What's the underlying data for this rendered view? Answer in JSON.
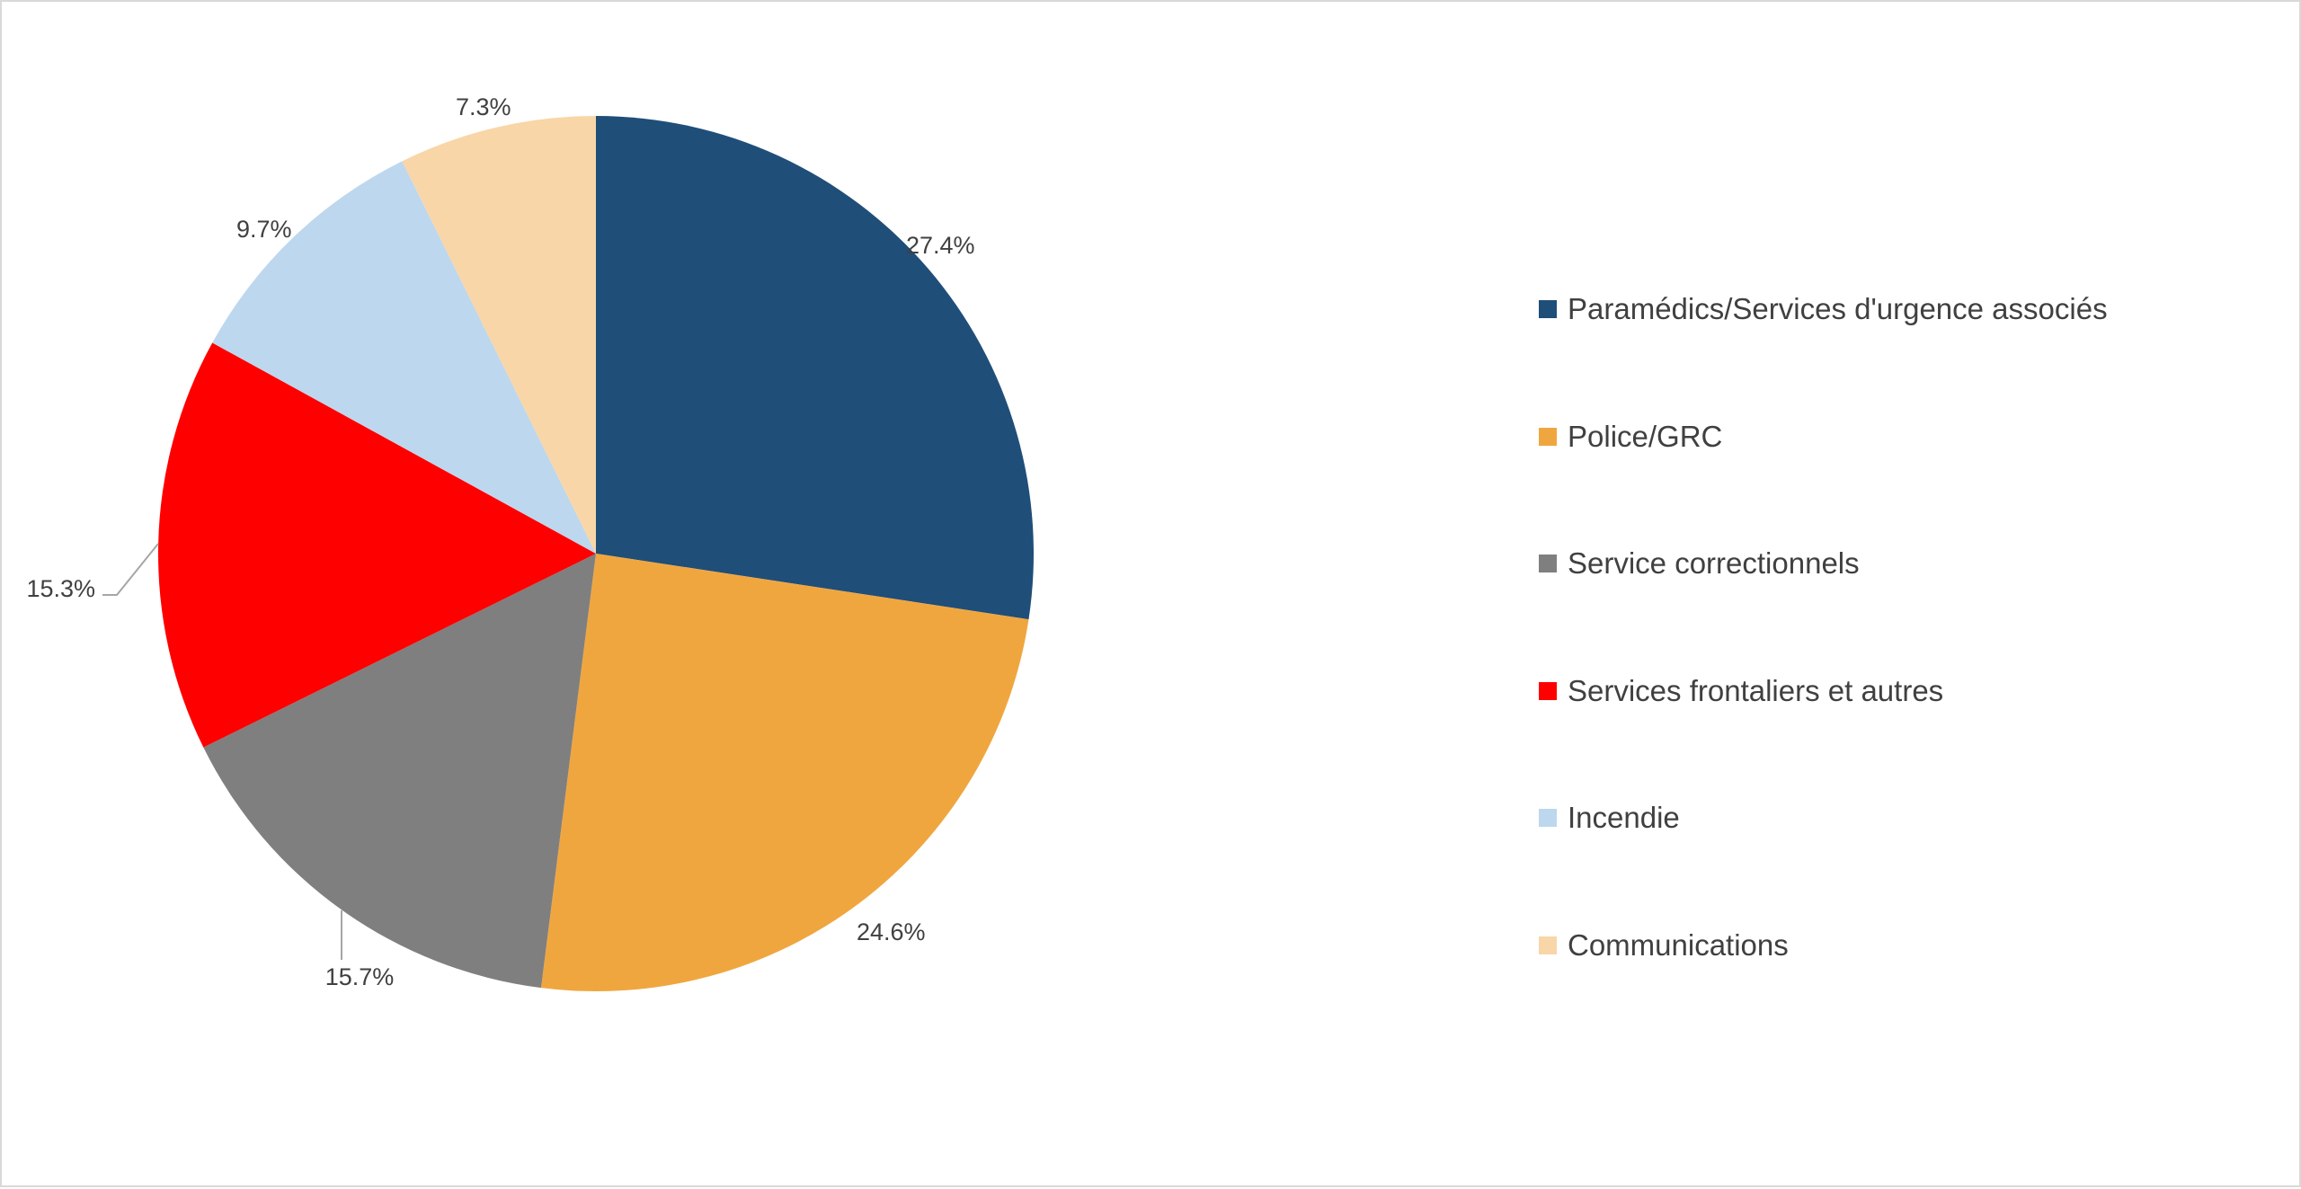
{
  "chart_data": {
    "type": "pie",
    "title": "",
    "slices": [
      {
        "label": "Paramédics/Services d'urgence associés",
        "value": 27.4,
        "display": "27.4%",
        "color": "#1f4e79"
      },
      {
        "label": "Police/GRC",
        "value": 24.6,
        "display": "24.6%",
        "color": "#f0a63f"
      },
      {
        "label": "Service correctionnels",
        "value": 15.7,
        "display": "15.7%",
        "color": "#7f7f7f"
      },
      {
        "label": "Services frontaliers et autres",
        "value": 15.3,
        "display": "15.3%",
        "color": "#ff0000"
      },
      {
        "label": "Incendie",
        "value": 9.7,
        "display": "9.7%",
        "color": "#bdd7ee"
      },
      {
        "label": "Communications",
        "value": 7.3,
        "display": "7.3%",
        "color": "#f8d6a8"
      }
    ],
    "start_angle": "12 o'clock",
    "direction": "clockwise",
    "legend_position": "right"
  }
}
